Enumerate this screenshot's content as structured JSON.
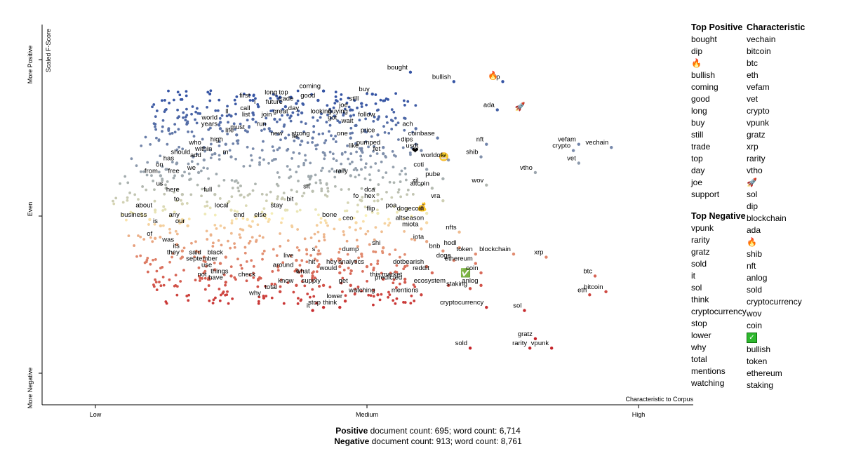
{
  "chart_data": {
    "type": "scatter",
    "title": "",
    "xlabel": "Characteristic to Corpus",
    "ylabel": "Scaled F-Score",
    "x_ticks": [
      "Low",
      "Medium",
      "High"
    ],
    "y_ticks": [
      "More Negative",
      "Even",
      "More Positive"
    ],
    "xlim": [
      0,
      1
    ],
    "ylim": [
      0,
      1
    ],
    "color_scale": {
      "negative": "#c42228",
      "neutral": "#fff6b8",
      "positive": "#3554a4"
    },
    "grid": false,
    "labeled_points": [
      {
        "w": "bought",
        "x": 0.58,
        "y": 0.96
      },
      {
        "w": "bullish",
        "x": 0.66,
        "y": 0.93
      },
      {
        "w": "dip",
        "x": 0.75,
        "y": 0.93
      },
      {
        "w": "🔥",
        "x": 0.73,
        "y": 0.95
      },
      {
        "w": "ada",
        "x": 0.74,
        "y": 0.84
      },
      {
        "w": "🚀",
        "x": 0.78,
        "y": 0.85
      },
      {
        "w": "coming",
        "x": 0.42,
        "y": 0.9
      },
      {
        "w": "buy",
        "x": 0.51,
        "y": 0.89
      },
      {
        "w": "long",
        "x": 0.34,
        "y": 0.88
      },
      {
        "w": "top",
        "x": 0.36,
        "y": 0.88
      },
      {
        "w": "good",
        "x": 0.41,
        "y": 0.87
      },
      {
        "w": "trade",
        "x": 0.37,
        "y": 0.86
      },
      {
        "w": "first",
        "x": 0.29,
        "y": 0.87
      },
      {
        "w": "i",
        "x": 0.3,
        "y": 0.85
      },
      {
        "w": "future",
        "x": 0.35,
        "y": 0.85
      },
      {
        "w": "still",
        "x": 0.49,
        "y": 0.86
      },
      {
        "w": "joe",
        "x": 0.47,
        "y": 0.84
      },
      {
        "w": "call",
        "x": 0.29,
        "y": 0.83
      },
      {
        "w": "day",
        "x": 0.38,
        "y": 0.83
      },
      {
        "w": "ll",
        "x": 0.25,
        "y": 0.82
      },
      {
        "w": "list",
        "x": 0.29,
        "y": 0.81
      },
      {
        "w": "join",
        "x": 0.33,
        "y": 0.81
      },
      {
        "w": "great",
        "x": 0.36,
        "y": 0.82
      },
      {
        "w": "looking",
        "x": 0.44,
        "y": 0.82
      },
      {
        "w": "buying",
        "x": 0.47,
        "y": 0.82
      },
      {
        "w": "follow",
        "x": 0.52,
        "y": 0.81
      },
      {
        "w": "got",
        "x": 0.45,
        "y": 0.8
      },
      {
        "w": "world",
        "x": 0.23,
        "y": 0.8
      },
      {
        "w": "years",
        "x": 0.23,
        "y": 0.78
      },
      {
        "w": "must",
        "x": 0.28,
        "y": 0.77
      },
      {
        "w": "run",
        "x": 0.32,
        "y": 0.78
      },
      {
        "w": "wait",
        "x": 0.48,
        "y": 0.79
      },
      {
        "w": "ach",
        "x": 0.59,
        "y": 0.78
      },
      {
        "w": "life",
        "x": 0.26,
        "y": 0.76
      },
      {
        "w": "new",
        "x": 0.35,
        "y": 0.75
      },
      {
        "w": "strong",
        "x": 0.4,
        "y": 0.75
      },
      {
        "w": "one",
        "x": 0.47,
        "y": 0.75
      },
      {
        "w": "price",
        "x": 0.52,
        "y": 0.76
      },
      {
        "w": "coinbase",
        "x": 0.63,
        "y": 0.75
      },
      {
        "w": "high",
        "x": 0.24,
        "y": 0.73
      },
      {
        "w": "let",
        "x": 0.38,
        "y": 0.74
      },
      {
        "w": "dips",
        "x": 0.59,
        "y": 0.73
      },
      {
        "w": "nft",
        "x": 0.72,
        "y": 0.73
      },
      {
        "w": "who",
        "x": 0.2,
        "y": 0.72
      },
      {
        "w": "like",
        "x": 0.49,
        "y": 0.71
      },
      {
        "w": "pumped",
        "x": 0.53,
        "y": 0.72
      },
      {
        "w": "usdt",
        "x": 0.6,
        "y": 0.71
      },
      {
        "w": "❤",
        "x": 0.59,
        "y": 0.71
      },
      {
        "w": "vefam",
        "x": 0.89,
        "y": 0.73
      },
      {
        "w": "vechain",
        "x": 0.95,
        "y": 0.72
      },
      {
        "w": "crypto",
        "x": 0.88,
        "y": 0.71
      },
      {
        "w": "within",
        "x": 0.22,
        "y": 0.7
      },
      {
        "w": "fet",
        "x": 0.53,
        "y": 0.7
      },
      {
        "w": "😬",
        "x": 0.64,
        "y": 0.69
      },
      {
        "w": "worldofv",
        "x": 0.65,
        "y": 0.68
      },
      {
        "w": "shib",
        "x": 0.71,
        "y": 0.69
      },
      {
        "w": "should",
        "x": 0.18,
        "y": 0.69
      },
      {
        "w": "add",
        "x": 0.2,
        "y": 0.68
      },
      {
        "w": "m",
        "x": 0.25,
        "y": 0.69
      },
      {
        "w": "has",
        "x": 0.15,
        "y": 0.67
      },
      {
        "w": "vet",
        "x": 0.89,
        "y": 0.67
      },
      {
        "w": "on",
        "x": 0.13,
        "y": 0.65
      },
      {
        "w": "coti",
        "x": 0.61,
        "y": 0.65
      },
      {
        "w": "vtho",
        "x": 0.81,
        "y": 0.64
      },
      {
        "w": "from",
        "x": 0.12,
        "y": 0.63
      },
      {
        "w": "free",
        "x": 0.16,
        "y": 0.63
      },
      {
        "w": "we",
        "x": 0.19,
        "y": 0.64
      },
      {
        "w": "rally",
        "x": 0.47,
        "y": 0.63
      },
      {
        "w": "pube",
        "x": 0.64,
        "y": 0.62
      },
      {
        "w": "zil",
        "x": 0.6,
        "y": 0.6
      },
      {
        "w": "altcoin",
        "x": 0.62,
        "y": 0.59
      },
      {
        "w": "wov",
        "x": 0.72,
        "y": 0.6
      },
      {
        "w": "us",
        "x": 0.13,
        "y": 0.59
      },
      {
        "w": "sit",
        "x": 0.4,
        "y": 0.58
      },
      {
        "w": "dca",
        "x": 0.52,
        "y": 0.57
      },
      {
        "w": "here",
        "x": 0.16,
        "y": 0.57
      },
      {
        "w": "full",
        "x": 0.22,
        "y": 0.57
      },
      {
        "w": "fo",
        "x": 0.49,
        "y": 0.55
      },
      {
        "w": "hex",
        "x": 0.52,
        "y": 0.55
      },
      {
        "w": "vra",
        "x": 0.64,
        "y": 0.55
      },
      {
        "w": "to",
        "x": 0.16,
        "y": 0.54
      },
      {
        "w": "bit",
        "x": 0.37,
        "y": 0.54
      },
      {
        "w": "💰",
        "x": 0.6,
        "y": 0.53
      },
      {
        "w": "about",
        "x": 0.11,
        "y": 0.52
      },
      {
        "w": "local",
        "x": 0.25,
        "y": 0.52
      },
      {
        "w": "stay",
        "x": 0.35,
        "y": 0.52
      },
      {
        "w": "flip",
        "x": 0.52,
        "y": 0.51
      },
      {
        "w": "poa",
        "x": 0.56,
        "y": 0.52
      },
      {
        "w": "dogecoin",
        "x": 0.61,
        "y": 0.51
      },
      {
        "w": "business",
        "x": 0.1,
        "y": 0.49
      },
      {
        "w": "any",
        "x": 0.16,
        "y": 0.49
      },
      {
        "w": "end",
        "x": 0.28,
        "y": 0.49
      },
      {
        "w": "else",
        "x": 0.32,
        "y": 0.49
      },
      {
        "w": "bone",
        "x": 0.45,
        "y": 0.49
      },
      {
        "w": "ceo",
        "x": 0.48,
        "y": 0.48
      },
      {
        "w": "altseason",
        "x": 0.61,
        "y": 0.48
      },
      {
        "w": "is",
        "x": 0.12,
        "y": 0.47
      },
      {
        "w": "our",
        "x": 0.17,
        "y": 0.47
      },
      {
        "w": "miota",
        "x": 0.6,
        "y": 0.46
      },
      {
        "w": "nfts",
        "x": 0.67,
        "y": 0.45
      },
      {
        "w": "of",
        "x": 0.11,
        "y": 0.43
      },
      {
        "w": "iota",
        "x": 0.61,
        "y": 0.42
      },
      {
        "w": "was",
        "x": 0.15,
        "y": 0.41
      },
      {
        "w": "shi",
        "x": 0.53,
        "y": 0.4
      },
      {
        "w": "hodl",
        "x": 0.67,
        "y": 0.4
      },
      {
        "w": "its",
        "x": 0.16,
        "y": 0.39
      },
      {
        "w": "bnb",
        "x": 0.64,
        "y": 0.39
      },
      {
        "w": "blockchain",
        "x": 0.77,
        "y": 0.38
      },
      {
        "w": "they",
        "x": 0.16,
        "y": 0.37
      },
      {
        "w": "said",
        "x": 0.2,
        "y": 0.37
      },
      {
        "w": "black",
        "x": 0.24,
        "y": 0.37
      },
      {
        "w": "s",
        "x": 0.41,
        "y": 0.38
      },
      {
        "w": "dump",
        "x": 0.49,
        "y": 0.38
      },
      {
        "w": "token",
        "x": 0.7,
        "y": 0.38
      },
      {
        "w": "xrp",
        "x": 0.83,
        "y": 0.37
      },
      {
        "w": "september",
        "x": 0.23,
        "y": 0.35
      },
      {
        "w": "live",
        "x": 0.37,
        "y": 0.36
      },
      {
        "w": "doge",
        "x": 0.66,
        "y": 0.36
      },
      {
        "w": "ethereum",
        "x": 0.7,
        "y": 0.35
      },
      {
        "w": "hit",
        "x": 0.41,
        "y": 0.34
      },
      {
        "w": "hey",
        "x": 0.45,
        "y": 0.34
      },
      {
        "w": "analytics",
        "x": 0.5,
        "y": 0.34
      },
      {
        "w": "dot",
        "x": 0.57,
        "y": 0.34
      },
      {
        "w": "bearish",
        "x": 0.61,
        "y": 0.34
      },
      {
        "w": "use",
        "x": 0.22,
        "y": 0.33
      },
      {
        "w": "around",
        "x": 0.37,
        "y": 0.33
      },
      {
        "w": "would",
        "x": 0.45,
        "y": 0.32
      },
      {
        "w": "reddit",
        "x": 0.62,
        "y": 0.32
      },
      {
        "w": "✅",
        "x": 0.68,
        "y": 0.32
      },
      {
        "w": "coin",
        "x": 0.71,
        "y": 0.32
      },
      {
        "w": "things",
        "x": 0.25,
        "y": 0.31
      },
      {
        "w": "check",
        "x": 0.3,
        "y": 0.3
      },
      {
        "w": "t",
        "x": 0.38,
        "y": 0.31
      },
      {
        "w": "what",
        "x": 0.4,
        "y": 0.31
      },
      {
        "w": "this",
        "x": 0.53,
        "y": 0.3
      },
      {
        "w": "market",
        "x": 0.57,
        "y": 0.3
      },
      {
        "w": "btc",
        "x": 0.92,
        "y": 0.31
      },
      {
        "w": "not",
        "x": 0.21,
        "y": 0.3
      },
      {
        "w": "have",
        "x": 0.24,
        "y": 0.29
      },
      {
        "w": "know",
        "x": 0.37,
        "y": 0.28
      },
      {
        "w": "supply",
        "x": 0.42,
        "y": 0.28
      },
      {
        "w": "predicted",
        "x": 0.57,
        "y": 0.29
      },
      {
        "w": "get",
        "x": 0.47,
        "y": 0.28
      },
      {
        "w": "ecosystem",
        "x": 0.65,
        "y": 0.28
      },
      {
        "w": "anlog",
        "x": 0.71,
        "y": 0.28
      },
      {
        "w": "staking",
        "x": 0.69,
        "y": 0.27
      },
      {
        "w": "bitcoin",
        "x": 0.94,
        "y": 0.26
      },
      {
        "w": "total",
        "x": 0.34,
        "y": 0.26
      },
      {
        "w": "watching",
        "x": 0.52,
        "y": 0.25
      },
      {
        "w": "mentions",
        "x": 0.6,
        "y": 0.25
      },
      {
        "w": "eth",
        "x": 0.91,
        "y": 0.25
      },
      {
        "w": "why",
        "x": 0.31,
        "y": 0.24
      },
      {
        "w": "lower",
        "x": 0.46,
        "y": 0.23
      },
      {
        "w": "stop",
        "x": 0.42,
        "y": 0.21
      },
      {
        "w": "think",
        "x": 0.45,
        "y": 0.21
      },
      {
        "w": "cryptocurrency",
        "x": 0.72,
        "y": 0.21
      },
      {
        "w": "it",
        "x": 0.4,
        "y": 0.2
      },
      {
        "w": "sol",
        "x": 0.79,
        "y": 0.2
      },
      {
        "w": "gratz",
        "x": 0.81,
        "y": 0.11
      },
      {
        "w": "sold",
        "x": 0.69,
        "y": 0.08
      },
      {
        "w": "rarity",
        "x": 0.8,
        "y": 0.08
      },
      {
        "w": "vpunk",
        "x": 0.84,
        "y": 0.08
      }
    ]
  },
  "axes": {
    "y_axis_title": "Scaled F-Score",
    "y_more_positive": "More Positive",
    "y_even": "Even",
    "y_more_negative": "More Negative",
    "x_low": "Low",
    "x_medium": "Medium",
    "x_high": "High",
    "x_axis_title": "Characteristic to Corpus"
  },
  "legend": {
    "top_positive_title": "Top Positive",
    "top_positive": [
      "bought",
      "dip",
      "🔥",
      "bullish",
      "coming",
      "good",
      "long",
      "buy",
      "still",
      "trade",
      "top",
      "day",
      "joe",
      "support"
    ],
    "top_negative_title": "Top Negative",
    "top_negative": [
      "vpunk",
      "rarity",
      "gratz",
      "sold",
      "it",
      "sol",
      "think",
      "cryptocurrency",
      "stop",
      "lower",
      "why",
      "total",
      "mentions",
      "watching"
    ],
    "characteristic_title": "Characteristic",
    "characteristic": [
      "vechain",
      "bitcoin",
      "btc",
      "eth",
      "vefam",
      "vet",
      "crypto",
      "vpunk",
      "gratz",
      "xrp",
      "rarity",
      "vtho",
      "🚀",
      "sol",
      "dip",
      "blockchain",
      "ada",
      "🔥",
      "shib",
      "nft",
      "anlog",
      "sold",
      "cryptocurrency",
      "wov",
      "coin",
      "✅",
      "bullish",
      "token",
      "ethereum",
      "staking"
    ]
  },
  "counts": {
    "positive_label": "Positive",
    "positive_text": "document count: 695; word count: 6,714",
    "negative_label": "Negative",
    "negative_text": "document count: 913; word count: 8,761"
  }
}
